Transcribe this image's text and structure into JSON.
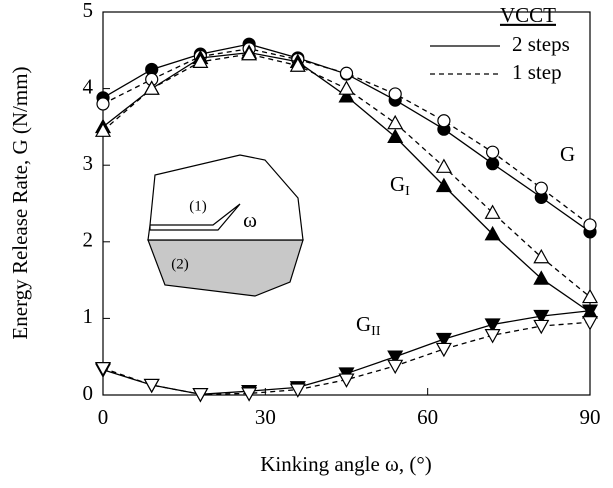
{
  "chart_data": {
    "type": "line",
    "xlabel": "Kinking angle ω, (°)",
    "ylabel": "Energy Release Rate, G (N/mm)",
    "x": [
      0,
      9,
      18,
      27,
      36,
      45,
      54,
      63,
      72,
      81,
      90
    ],
    "xlim": [
      0,
      90
    ],
    "xticks": [
      0,
      30,
      60,
      90
    ],
    "ylim": [
      0,
      5
    ],
    "yticks": [
      0,
      1,
      2,
      3,
      4,
      5
    ],
    "series": [
      {
        "color": "#000000",
        "marker": "circle",
        "filled": true,
        "dashed": false,
        "values": [
          3.88,
          4.25,
          4.45,
          4.58,
          4.4,
          4.19,
          3.85,
          3.47,
          3.02,
          2.58,
          2.13
        ]
      },
      {
        "color": "#000000",
        "marker": "circle",
        "filled": false,
        "dashed": true,
        "values": [
          3.8,
          4.12,
          4.42,
          4.52,
          4.38,
          4.2,
          3.93,
          3.58,
          3.17,
          2.7,
          2.22
        ]
      },
      {
        "color": "#000000",
        "marker": "triangle-up",
        "filled": true,
        "dashed": false,
        "values": [
          3.5,
          4.0,
          4.4,
          4.47,
          4.35,
          3.9,
          3.37,
          2.73,
          2.1,
          1.52,
          1.08
        ]
      },
      {
        "color": "#000000",
        "marker": "triangle-up",
        "filled": false,
        "dashed": true,
        "values": [
          3.45,
          4.0,
          4.35,
          4.45,
          4.3,
          4.0,
          3.55,
          2.98,
          2.38,
          1.8,
          1.28
        ]
      },
      {
        "color": "#000000",
        "marker": "triangle-down",
        "filled": true,
        "dashed": false,
        "values": [
          0.33,
          0.13,
          0.01,
          0.05,
          0.1,
          0.28,
          0.5,
          0.73,
          0.92,
          1.03,
          1.1
        ]
      },
      {
        "color": "#000000",
        "marker": "triangle-down",
        "filled": false,
        "dashed": true,
        "values": [
          0.35,
          0.13,
          0.01,
          0.02,
          0.07,
          0.2,
          0.38,
          0.6,
          0.78,
          0.9,
          0.95
        ]
      }
    ],
    "legend": {
      "title": "VCCT",
      "entries": [
        {
          "label": "2 steps",
          "dashed": false
        },
        {
          "label": "1 step",
          "dashed": true
        }
      ]
    },
    "annotations": [
      {
        "text": "G",
        "sub": ""
      },
      {
        "text": "G",
        "sub": "I"
      },
      {
        "text": "G",
        "sub": "II"
      }
    ],
    "inset": {
      "region1": "(1)",
      "region2": "(2)",
      "angle": "ω"
    }
  }
}
